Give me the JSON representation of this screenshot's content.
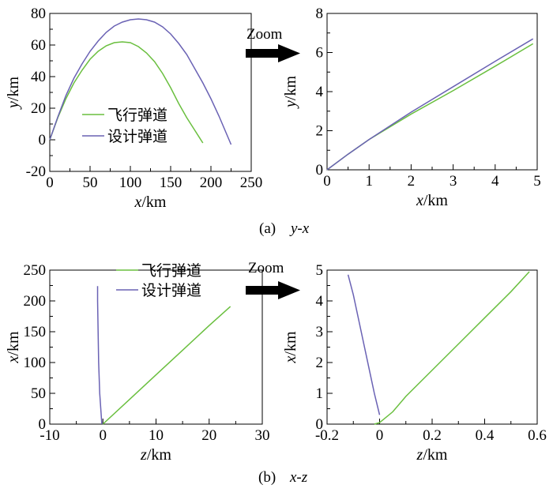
{
  "captions": [
    {
      "prefix": "(a)",
      "label": "y-x"
    },
    {
      "prefix": "(b)",
      "label": "x-z"
    }
  ],
  "zoom_label": "Zoom",
  "colors": {
    "flight": "#6abf3f",
    "design": "#6a62b4",
    "axis": "#000000"
  },
  "chart_data": [
    {
      "type": "line",
      "xlabel": "x/km",
      "ylabel": "y/km",
      "xlim": [
        0,
        250
      ],
      "ylim": [
        -20,
        80
      ],
      "xticks": [
        0,
        50,
        100,
        150,
        200,
        250
      ],
      "yticks": [
        -20,
        0,
        20,
        40,
        60,
        80
      ],
      "legend": "center-left",
      "series": [
        {
          "name": "飞行弹道",
          "color": "#6abf3f",
          "x": [
            0,
            10,
            20,
            30,
            40,
            50,
            60,
            70,
            80,
            90,
            100,
            110,
            120,
            130,
            140,
            150,
            160,
            170,
            180,
            190
          ],
          "y": [
            0,
            14,
            26,
            36,
            44,
            51,
            56,
            59.5,
            61.5,
            62,
            61.5,
            59,
            55,
            49.5,
            42,
            33,
            23,
            14,
            6,
            -2
          ]
        },
        {
          "name": "设计弹道",
          "color": "#6a62b4",
          "x": [
            0,
            10,
            20,
            30,
            40,
            50,
            60,
            70,
            80,
            90,
            100,
            110,
            120,
            130,
            140,
            150,
            160,
            170,
            180,
            190,
            200,
            210,
            220,
            225
          ],
          "y": [
            0,
            14.5,
            28,
            39,
            48,
            56,
            62.5,
            68,
            72,
            74.5,
            76,
            76.5,
            76,
            74.5,
            71.5,
            67,
            61,
            54,
            45,
            36,
            26,
            15,
            3,
            -3
          ]
        }
      ]
    },
    {
      "type": "line",
      "xlabel": "x/km",
      "ylabel": "y/km",
      "xlim": [
        0,
        5
      ],
      "ylim": [
        0,
        8
      ],
      "xticks": [
        0,
        1,
        2,
        3,
        4,
        5
      ],
      "yticks": [
        0,
        2,
        4,
        6,
        8
      ],
      "series": [
        {
          "name": "飞行弹道",
          "color": "#6abf3f",
          "x": [
            0,
            0.5,
            1,
            2,
            3,
            4,
            4.9
          ],
          "y": [
            0,
            0.8,
            1.55,
            2.85,
            4.05,
            5.3,
            6.45
          ]
        },
        {
          "name": "设计弹道",
          "color": "#6a62b4",
          "x": [
            0,
            0.5,
            1,
            2,
            3,
            4,
            4.9
          ],
          "y": [
            0,
            0.8,
            1.55,
            2.95,
            4.25,
            5.55,
            6.7
          ]
        }
      ]
    },
    {
      "type": "line",
      "xlabel": "z/km",
      "ylabel": "x/km",
      "xlim": [
        -10,
        30
      ],
      "ylim": [
        0,
        250
      ],
      "xticks": [
        -10,
        0,
        10,
        20,
        30
      ],
      "yticks": [
        0,
        50,
        100,
        150,
        200,
        250
      ],
      "legend": "top-right",
      "series": [
        {
          "name": "飞行弹道",
          "color": "#6abf3f",
          "x": [
            0,
            5,
            10,
            15,
            20,
            24
          ],
          "y": [
            0,
            40,
            80,
            120,
            160,
            191
          ]
        },
        {
          "name": "设计弹道",
          "color": "#6a62b4",
          "x": [
            -0.2,
            -0.6,
            -0.8,
            -0.9,
            -1.0,
            -1.0
          ],
          "y": [
            0,
            50,
            100,
            150,
            200,
            224
          ]
        }
      ]
    },
    {
      "type": "line",
      "xlabel": "z/km",
      "ylabel": "x/km",
      "xlim": [
        -0.2,
        0.6
      ],
      "ylim": [
        0,
        5
      ],
      "xticks": [
        -0.2,
        0,
        0.2,
        0.4,
        0.6
      ],
      "yticks": [
        0,
        1,
        2,
        3,
        4,
        5
      ],
      "series": [
        {
          "name": "飞行弹道",
          "color": "#6abf3f",
          "x": [
            -0.02,
            0,
            0.05,
            0.1,
            0.2,
            0.3,
            0.4,
            0.5,
            0.57
          ],
          "y": [
            0,
            0.05,
            0.4,
            0.9,
            1.75,
            2.6,
            3.45,
            4.3,
            4.95
          ]
        },
        {
          "name": "设计弹道",
          "color": "#6a62b4",
          "x": [
            0,
            -0.02,
            -0.04,
            -0.06,
            -0.08,
            -0.1,
            -0.12
          ],
          "y": [
            0.3,
            1.0,
            1.8,
            2.6,
            3.4,
            4.2,
            4.85
          ]
        }
      ]
    }
  ]
}
